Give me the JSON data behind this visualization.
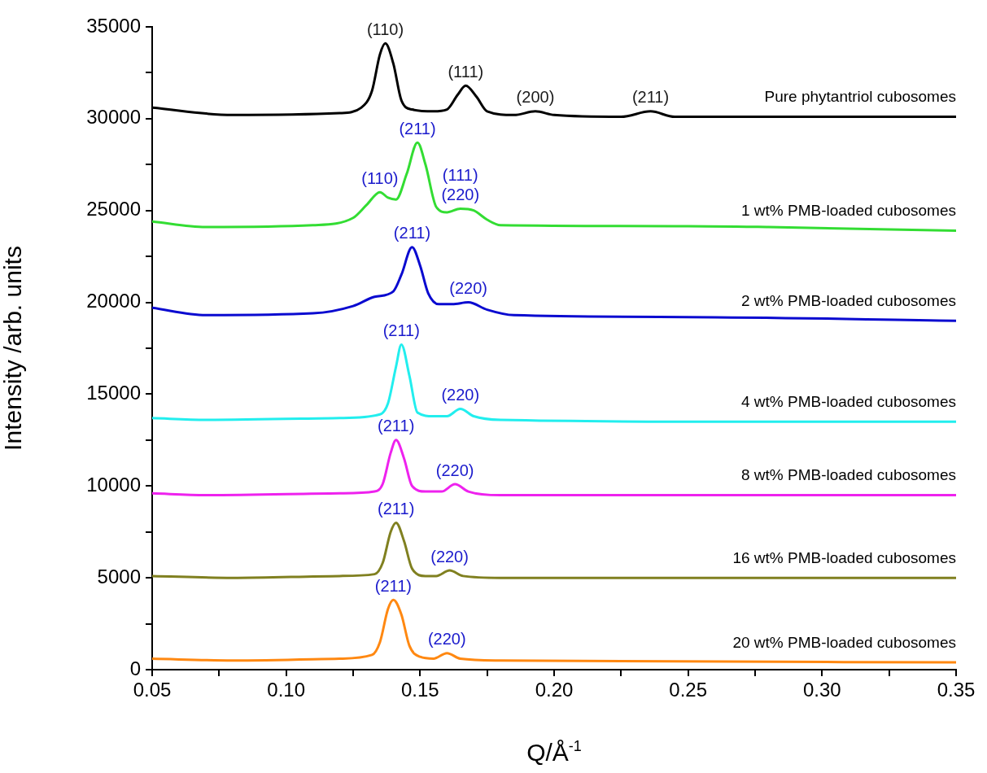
{
  "chart_data": {
    "type": "line",
    "xlabel": "Q/Å$^{-1}$",
    "ylabel": "Intensity /arb. units",
    "xlim": [
      0.05,
      0.35
    ],
    "xticks": [
      0.05,
      {
        "value": 0.075,
        "label": null
      },
      {
        "value": 0.1,
        "label": "0.10"
      },
      {
        "value": 0.125,
        "label": null
      },
      {
        "value": 0.15,
        "label": "0.15"
      },
      {
        "value": 0.175,
        "label": null
      },
      {
        "value": 0.2,
        "label": "0.20"
      },
      {
        "value": 0.225,
        "label": null
      },
      {
        "value": 0.25,
        "label": "0.25"
      },
      {
        "value": 0.275,
        "label": null
      },
      {
        "value": 0.3,
        "label": "0.30"
      },
      {
        "value": 0.325,
        "label": null
      },
      {
        "value": 0.35,
        "label": "0.35"
      }
    ],
    "ylim": [
      0,
      35000
    ],
    "yticks": [
      0,
      {
        "value": 2500,
        "label": null
      },
      5000,
      {
        "value": 7500,
        "label": null
      },
      10000,
      {
        "value": 12500,
        "label": null
      },
      15000,
      {
        "value": 17500,
        "label": null
      },
      20000,
      {
        "value": 22500,
        "label": null
      },
      25000,
      {
        "value": 27500,
        "label": null
      },
      30000,
      {
        "value": 32500,
        "label": null
      },
      35000
    ],
    "grid": false,
    "legend": false,
    "marker": "none",
    "line_style": "solid",
    "series": [
      {
        "name": "Pure phytantriol cubosomes",
        "color": "#000000",
        "x": [
          0.05,
          0.08,
          0.12,
          0.128,
          0.132,
          0.135,
          0.137,
          0.14,
          0.143,
          0.147,
          0.155,
          0.16,
          0.164,
          0.167,
          0.171,
          0.175,
          0.185,
          0.193,
          0.2,
          0.225,
          0.236,
          0.245,
          0.3,
          0.35
        ],
        "values": [
          30600,
          30200,
          30300,
          30600,
          31500,
          33500,
          34100,
          33000,
          31000,
          30500,
          30400,
          30500,
          31300,
          31800,
          31200,
          30400,
          30200,
          30400,
          30200,
          30100,
          30400,
          30100,
          30100,
          30100
        ]
      },
      {
        "name": "1 wt% PMB-loaded cubosomes",
        "color": "#33dd33",
        "x": [
          0.05,
          0.07,
          0.11,
          0.125,
          0.13,
          0.135,
          0.138,
          0.141,
          0.145,
          0.149,
          0.152,
          0.156,
          0.16,
          0.165,
          0.17,
          0.175,
          0.18,
          0.25,
          0.28,
          0.35
        ],
        "values": [
          24400,
          24100,
          24200,
          24600,
          25300,
          26000,
          25700,
          25600,
          27000,
          28700,
          27500,
          25200,
          24900,
          25100,
          25000,
          24500,
          24200,
          24150,
          24100,
          23900
        ]
      },
      {
        "name": "2 wt% PMB-loaded cubosomes",
        "color": "#0a0ad0",
        "x": [
          0.05,
          0.07,
          0.11,
          0.125,
          0.133,
          0.14,
          0.143,
          0.147,
          0.15,
          0.153,
          0.157,
          0.162,
          0.168,
          0.175,
          0.185,
          0.25,
          0.35
        ],
        "values": [
          19700,
          19300,
          19400,
          19800,
          20300,
          20600,
          21500,
          23000,
          22000,
          20500,
          19900,
          19900,
          20000,
          19600,
          19300,
          19200,
          19000
        ]
      },
      {
        "name": "4 wt% PMB-loaded cubosomes",
        "color": "#22eeee",
        "x": [
          0.05,
          0.07,
          0.12,
          0.135,
          0.138,
          0.141,
          0.143,
          0.146,
          0.149,
          0.155,
          0.16,
          0.165,
          0.17,
          0.18,
          0.27,
          0.35
        ],
        "values": [
          13700,
          13600,
          13700,
          13900,
          14500,
          16500,
          17700,
          16000,
          14000,
          13800,
          13800,
          14200,
          13800,
          13600,
          13500,
          13500
        ]
      },
      {
        "name": "8 wt% PMB-loaded cubosomes",
        "color": "#ee22ee",
        "x": [
          0.05,
          0.07,
          0.12,
          0.133,
          0.136,
          0.139,
          0.141,
          0.144,
          0.147,
          0.152,
          0.158,
          0.163,
          0.168,
          0.18,
          0.35
        ],
        "values": [
          9600,
          9500,
          9600,
          9700,
          10100,
          11800,
          12500,
          11500,
          10000,
          9700,
          9700,
          10100,
          9700,
          9500,
          9500
        ]
      },
      {
        "name": "16 wt% PMB-loaded cubosomes",
        "color": "#808020",
        "x": [
          0.05,
          0.08,
          0.12,
          0.133,
          0.136,
          0.139,
          0.141,
          0.144,
          0.147,
          0.152,
          0.156,
          0.161,
          0.166,
          0.18,
          0.35
        ],
        "values": [
          5100,
          5000,
          5100,
          5200,
          5800,
          7500,
          8000,
          7000,
          5500,
          5100,
          5100,
          5400,
          5100,
          5000,
          5000
        ]
      },
      {
        "name": "20 wt% PMB-loaded cubosomes",
        "color": "#ff8811",
        "x": [
          0.05,
          0.08,
          0.12,
          0.132,
          0.135,
          0.138,
          0.14,
          0.143,
          0.146,
          0.15,
          0.155,
          0.16,
          0.165,
          0.18,
          0.35
        ],
        "values": [
          600,
          500,
          600,
          800,
          1500,
          3300,
          3800,
          3000,
          1300,
          700,
          600,
          900,
          600,
          500,
          400
        ]
      }
    ],
    "annotations": [
      {
        "text": "(110)",
        "x": 0.137,
        "y": 34100
      },
      {
        "text": "(111)",
        "x": 0.167,
        "y": 31800
      },
      {
        "text": "(200)",
        "x": 0.193,
        "y": 30400
      },
      {
        "text": "(211)",
        "x": 0.236,
        "y": 30400
      },
      {
        "text": "(110)",
        "x": 0.135,
        "y": 26000
      },
      {
        "text": "(211)",
        "x": 0.149,
        "y": 28700
      },
      {
        "text": "(220)",
        "x": 0.165,
        "y": 25100
      },
      {
        "text": "(111)",
        "x": 0.165,
        "y": 25100
      },
      {
        "text": "(211)",
        "x": 0.147,
        "y": 23000
      },
      {
        "text": "(220)",
        "x": 0.168,
        "y": 20000
      },
      {
        "text": "(211)",
        "x": 0.143,
        "y": 17700
      },
      {
        "text": "(220)",
        "x": 0.165,
        "y": 14200
      },
      {
        "text": "(211)",
        "x": 0.141,
        "y": 12500
      },
      {
        "text": "(220)",
        "x": 0.163,
        "y": 10100
      },
      {
        "text": "(211)",
        "x": 0.141,
        "y": 8000
      },
      {
        "text": "(220)",
        "x": 0.161,
        "y": 5400
      },
      {
        "text": "(211)",
        "x": 0.14,
        "y": 3800
      },
      {
        "text": "(220)",
        "x": 0.16,
        "y": 900
      }
    ]
  }
}
